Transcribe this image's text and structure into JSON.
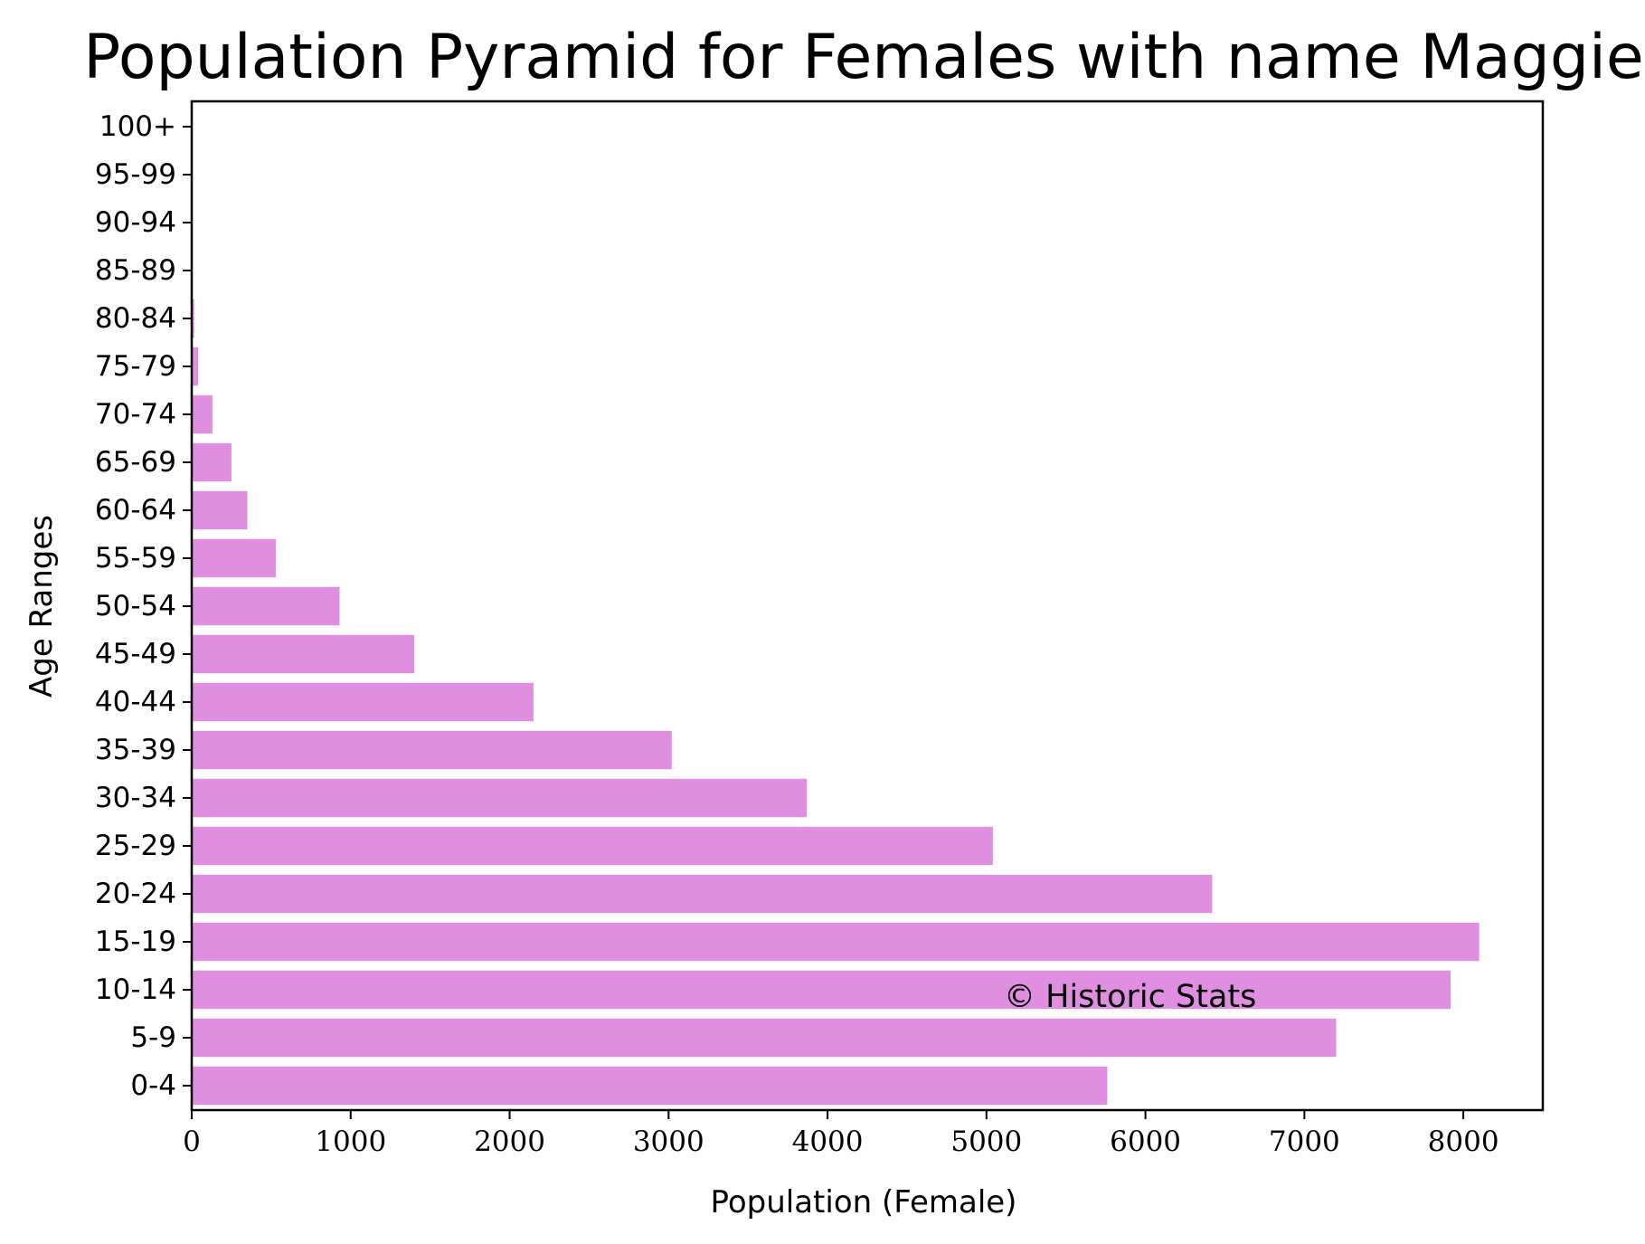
{
  "chart_data": {
    "type": "bar",
    "orientation": "horizontal",
    "title": "Population Pyramid for Females with name Maggie",
    "xlabel": "Population (Female)",
    "ylabel": "Age Ranges",
    "categories": [
      "0-4",
      "5-9",
      "10-14",
      "15-19",
      "20-24",
      "25-29",
      "30-34",
      "35-39",
      "40-44",
      "45-49",
      "50-54",
      "55-59",
      "60-64",
      "65-69",
      "70-74",
      "75-79",
      "80-84",
      "85-89",
      "90-94",
      "95-99",
      "100+"
    ],
    "values": [
      5760,
      7200,
      7920,
      8100,
      6420,
      5040,
      3870,
      3020,
      2150,
      1400,
      930,
      530,
      350,
      250,
      130,
      40,
      15,
      3,
      1,
      0,
      0
    ],
    "xlim": [
      0,
      8500
    ],
    "xticks": [
      0,
      1000,
      2000,
      3000,
      4000,
      5000,
      6000,
      7000,
      8000
    ],
    "bar_color": "#e08fe0",
    "grid": false,
    "annotation": "© Historic Stats"
  }
}
